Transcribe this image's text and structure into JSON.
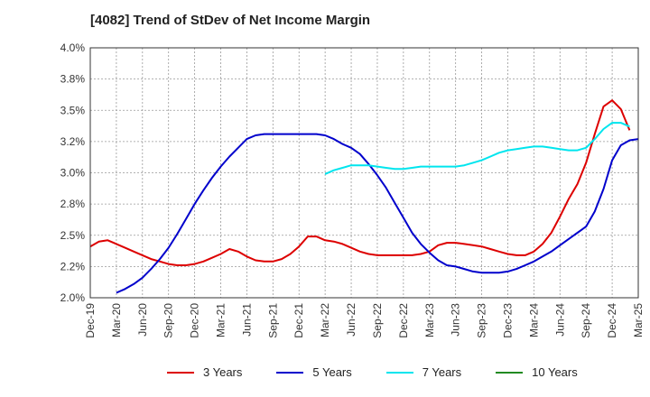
{
  "chart_data": {
    "type": "line",
    "title": "[4082]  Trend of StDev of Net Income Margin",
    "xlabel": "",
    "ylabel": "",
    "ylim": [
      2.0,
      4.0
    ],
    "yticks": [
      "2.0%",
      "2.2%",
      "2.5%",
      "2.8%",
      "3.0%",
      "3.2%",
      "3.5%",
      "3.8%",
      "4.0%"
    ],
    "xticks": [
      "Dec-19",
      "Mar-20",
      "Jun-20",
      "Sep-20",
      "Dec-20",
      "Mar-21",
      "Jun-21",
      "Sep-21",
      "Dec-21",
      "Mar-22",
      "Jun-22",
      "Sep-22",
      "Dec-22",
      "Mar-23",
      "Jun-23",
      "Sep-23",
      "Dec-23",
      "Mar-24",
      "Jun-24",
      "Sep-24",
      "Dec-24",
      "Mar-25"
    ],
    "grid": true,
    "legend_position": "bottom",
    "series": [
      {
        "name": "3 Years",
        "color": "#dd0000",
        "start_index": 0,
        "values": [
          2.41,
          2.45,
          2.46,
          2.43,
          2.4,
          2.37,
          2.34,
          2.31,
          2.29,
          2.27,
          2.26,
          2.26,
          2.27,
          2.29,
          2.32,
          2.35,
          2.39,
          2.37,
          2.33,
          2.3,
          2.29,
          2.29,
          2.31,
          2.35,
          2.41,
          2.49,
          2.49,
          2.46,
          2.45,
          2.43,
          2.4,
          2.37,
          2.35,
          2.34,
          2.34,
          2.34,
          2.34,
          2.34,
          2.35,
          2.37,
          2.42,
          2.44,
          2.44,
          2.43,
          2.42,
          2.41,
          2.39,
          2.37,
          2.35,
          2.34,
          2.34,
          2.37,
          2.43,
          2.52,
          2.65,
          2.79,
          2.91,
          3.08,
          3.31,
          3.53,
          3.58,
          3.51,
          3.34
        ]
      },
      {
        "name": "5 Years",
        "color": "#0000cc",
        "start_index": 3,
        "values": [
          2.04,
          2.07,
          2.11,
          2.16,
          2.23,
          2.31,
          2.4,
          2.51,
          2.63,
          2.75,
          2.86,
          2.96,
          3.05,
          3.13,
          3.2,
          3.27,
          3.3,
          3.31,
          3.31,
          3.31,
          3.31,
          3.31,
          3.31,
          3.31,
          3.3,
          3.27,
          3.23,
          3.2,
          3.15,
          3.07,
          2.98,
          2.88,
          2.76,
          2.64,
          2.52,
          2.43,
          2.36,
          2.3,
          2.26,
          2.25,
          2.23,
          2.21,
          2.2,
          2.2,
          2.2,
          2.21,
          2.23,
          2.26,
          2.29,
          2.33,
          2.37,
          2.42,
          2.47,
          2.52,
          2.57,
          2.69,
          2.87,
          3.1,
          3.22,
          3.26,
          3.27
        ]
      },
      {
        "name": "7 Years",
        "color": "#00e5ee",
        "start_index": 27,
        "values": [
          2.99,
          3.02,
          3.04,
          3.06,
          3.06,
          3.06,
          3.05,
          3.04,
          3.03,
          3.03,
          3.04,
          3.05,
          3.05,
          3.05,
          3.05,
          3.05,
          3.06,
          3.08,
          3.1,
          3.13,
          3.16,
          3.18,
          3.19,
          3.2,
          3.21,
          3.21,
          3.2,
          3.19,
          3.18,
          3.18,
          3.2,
          3.27,
          3.35,
          3.4,
          3.4,
          3.37
        ]
      },
      {
        "name": "10 Years",
        "color": "#228b22",
        "start_index": 0,
        "values": []
      }
    ]
  }
}
